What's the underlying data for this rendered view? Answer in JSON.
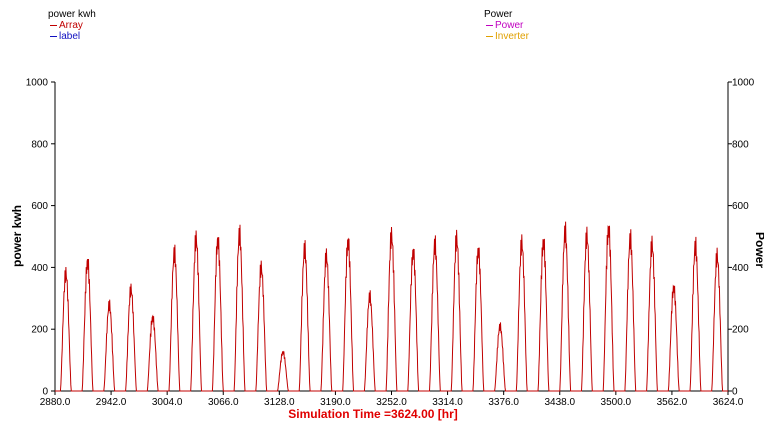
{
  "legend_left": {
    "title": "power kwh",
    "entries": [
      {
        "label": "Array",
        "color": "#c00000"
      },
      {
        "label": "label",
        "color": "#1010c0"
      }
    ]
  },
  "legend_right": {
    "title": "Power",
    "entries": [
      {
        "label": "Power",
        "color": "#c000c0"
      },
      {
        "label": "Inverter",
        "color": "#e0a000"
      }
    ]
  },
  "chart_data": {
    "type": "line",
    "title": "",
    "xlabel": "Simulation Time =3624.00 [hr]",
    "ylabel": "power kwh",
    "ylabel_right": "Power",
    "xlim": [
      2880,
      3624
    ],
    "ylim": [
      0,
      1000
    ],
    "x_ticks": [
      "2880.0",
      "2942.0",
      "3004.0",
      "3066.0",
      "3128.0",
      "3190.0",
      "3252.0",
      "3314.0",
      "3376.0",
      "3438.0",
      "3500.0",
      "3562.0",
      "3624.0"
    ],
    "y_ticks": [
      "0",
      "200",
      "400",
      "600",
      "800",
      "1000"
    ],
    "y_ticks_right": [
      "0",
      "200",
      "400",
      "600",
      "800",
      "1000"
    ],
    "grid": false,
    "series": [
      {
        "name": "Array",
        "color": "#c00000",
        "daily_peaks_kwh": [
          410,
          450,
          300,
          355,
          255,
          480,
          530,
          525,
          545,
          430,
          135,
          495,
          470,
          520,
          330,
          540,
          485,
          510,
          530,
          490,
          225,
          515,
          520,
          555,
          540,
          565,
          530,
          510,
          360,
          505,
          470
        ]
      }
    ]
  },
  "axis_colors": {
    "xlabel": "#e00000",
    "line": "#c00000",
    "axis": "#000000"
  }
}
